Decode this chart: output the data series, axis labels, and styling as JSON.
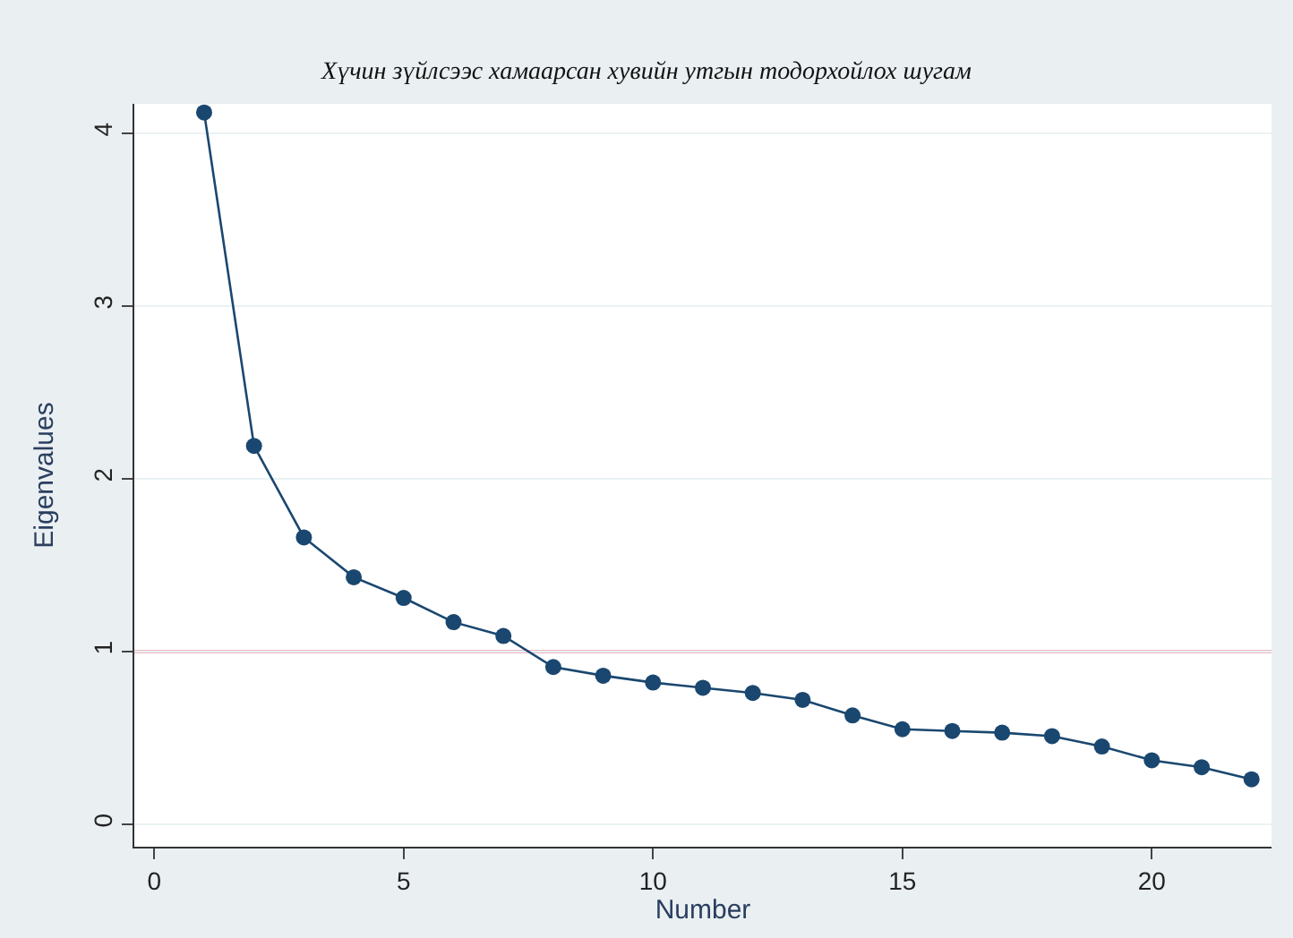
{
  "chart_data": {
    "type": "line",
    "title": "Хүчин зүйлсээс хамаарсан хувийн утгын тодорхойлох шугам",
    "xlabel": "Number",
    "ylabel": "Eigenvalues",
    "x": [
      1,
      2,
      3,
      4,
      5,
      6,
      7,
      8,
      9,
      10,
      11,
      12,
      13,
      14,
      15,
      16,
      17,
      18,
      19,
      20,
      21,
      22
    ],
    "series": [
      {
        "color": "#1a476f",
        "values": [
          4.12,
          2.19,
          1.66,
          1.43,
          1.31,
          1.17,
          1.09,
          0.91,
          0.86,
          0.82,
          0.79,
          0.76,
          0.72,
          0.63,
          0.55,
          0.54,
          0.53,
          0.51,
          0.45,
          0.37,
          0.33,
          0.26
        ]
      }
    ],
    "xlim": [
      -0.4,
      22.4
    ],
    "ylim": [
      -0.13,
      4.17
    ],
    "xticks": [
      0,
      5,
      10,
      15,
      20
    ],
    "yticks": [
      0,
      1,
      2,
      3,
      4
    ],
    "ref_lines": [
      {
        "axis": "y",
        "value": 1,
        "color": "#d9728a"
      }
    ],
    "grid": "y",
    "marker": "circle",
    "line_style": "solid"
  }
}
